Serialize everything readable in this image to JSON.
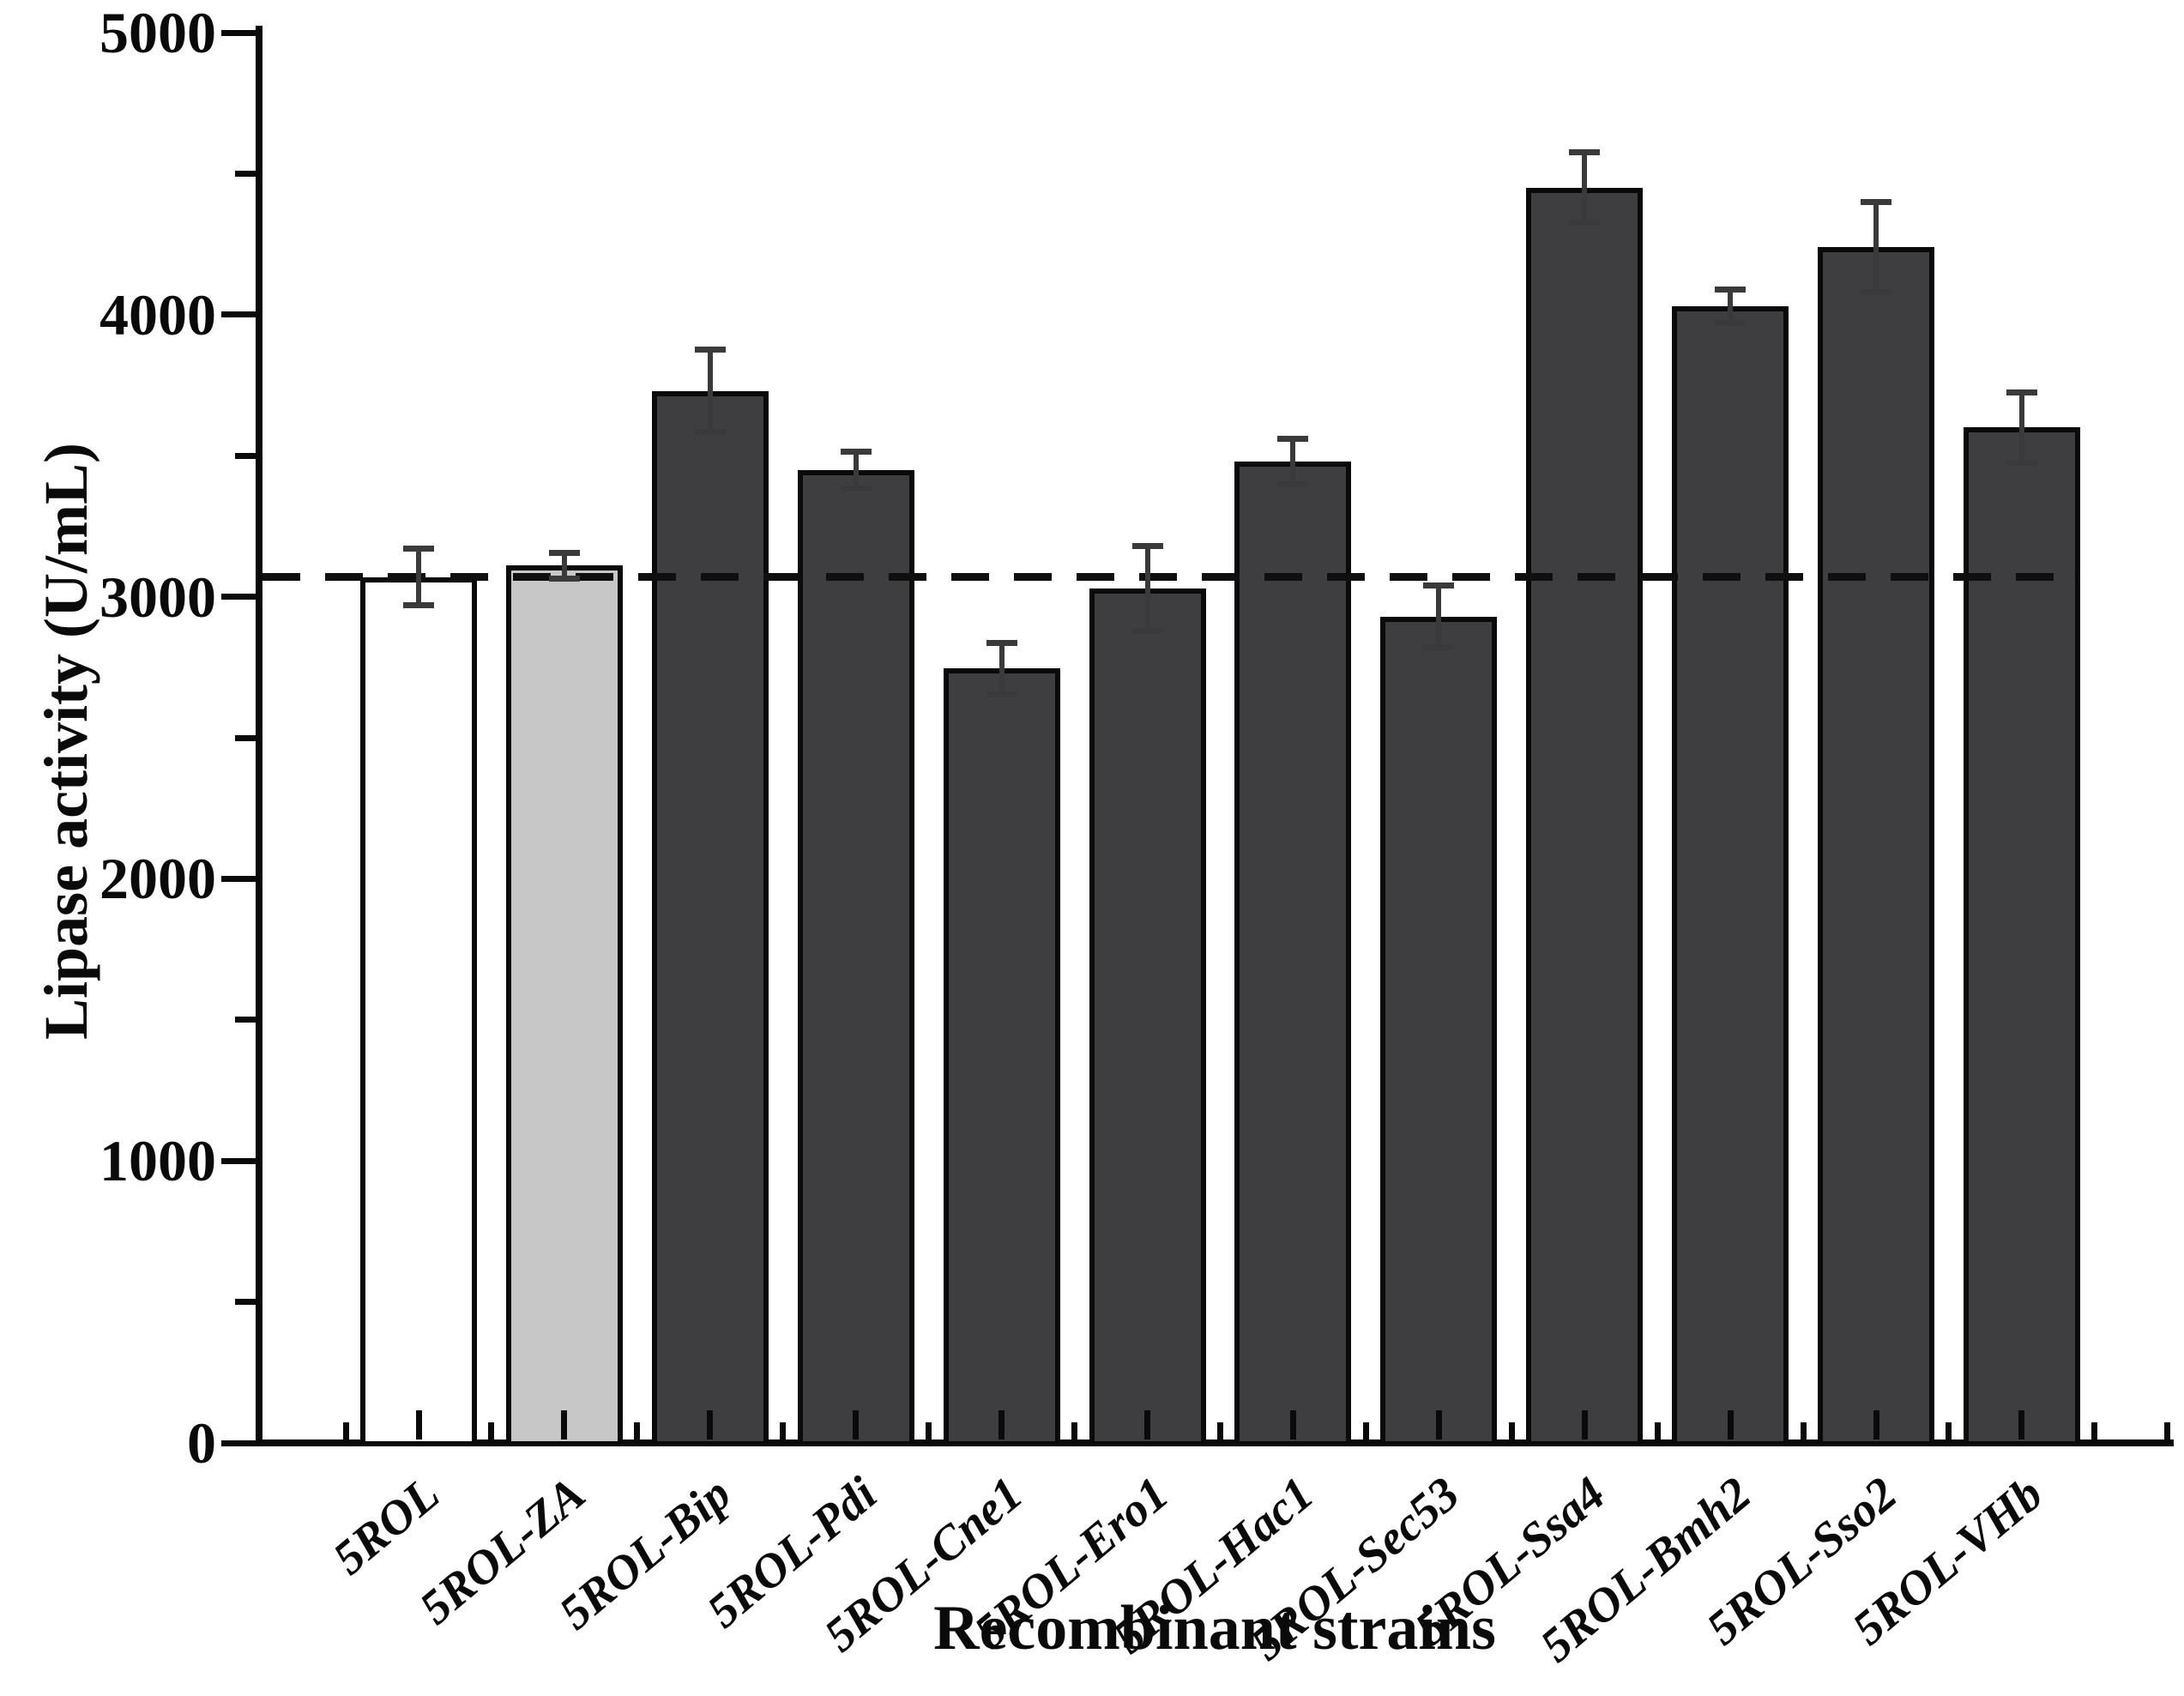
{
  "figure": {
    "y_axis_title": "Lipase activity (U/mL)",
    "x_axis_title": "Recombinant strains"
  },
  "chart_data": {
    "type": "bar",
    "title": "",
    "xlabel": "Recombinant strains",
    "ylabel": "Lipase activity (U/mL)",
    "ylim": [
      0,
      5000
    ],
    "grid": false,
    "legend": "none",
    "y_major_ticks": [
      0,
      1000,
      2000,
      3000,
      4000,
      5000
    ],
    "y_tick_labels": [
      "0",
      "1000",
      "2000",
      "3000",
      "4000",
      "5000"
    ],
    "y_minor_tick_interval": 500,
    "categories": [
      "5ROL",
      "5ROL-ZA",
      "5ROL-Bip",
      "5ROL-Pdi",
      "5ROL-Cne1",
      "5ROL-Ero1",
      "5ROL-Hac1",
      "5ROL-Sec53",
      "5ROL-Ssa4",
      "5ROL-Bmh2",
      "5ROL-Sso2",
      "5ROL-VHb"
    ],
    "values": [
      3070,
      3110,
      3730,
      3450,
      2745,
      3030,
      3480,
      2930,
      4450,
      4030,
      4240,
      3600
    ],
    "errors": [
      100,
      45,
      145,
      65,
      90,
      150,
      80,
      110,
      125,
      60,
      160,
      125
    ],
    "bar_colors": [
      "#ffffff",
      "#c7c7c7",
      "#3e3e40",
      "#3e3e40",
      "#3e3e40",
      "#3e3e40",
      "#3e3e40",
      "#3e3e40",
      "#3e3e40",
      "#3e3e40",
      "#3e3e40",
      "#3e3e40"
    ],
    "bar_edge_color": "#0a0a0a",
    "error_bar_color": "#3a3a3a",
    "reference_line": {
      "value": 3070,
      "style": "dashed",
      "color": "#0f0f0f"
    }
  }
}
